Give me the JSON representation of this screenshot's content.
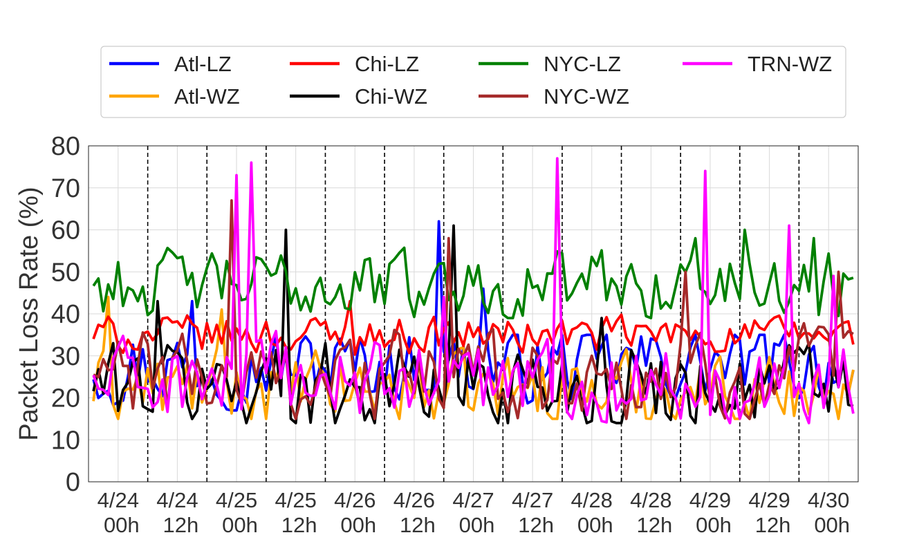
{
  "chart_data": {
    "type": "line",
    "title": "",
    "xlabel": "",
    "ylabel": "Packet Loss Rate (%)",
    "ylim": [
      0,
      80
    ],
    "yticks": [
      0,
      10,
      20,
      30,
      40,
      50,
      60,
      70,
      80
    ],
    "xlim": [
      "4/23 18h",
      "4/30 06h"
    ],
    "x_tick_labels": [
      {
        "at": "4/24 00h",
        "line1": "4/24",
        "line2": "00h"
      },
      {
        "at": "4/24 12h",
        "line1": "4/24",
        "line2": "12h"
      },
      {
        "at": "4/25 00h",
        "line1": "4/25",
        "line2": "00h"
      },
      {
        "at": "4/25 12h",
        "line1": "4/25",
        "line2": "12h"
      },
      {
        "at": "4/26 00h",
        "line1": "4/26",
        "line2": "00h"
      },
      {
        "at": "4/26 12h",
        "line1": "4/26",
        "line2": "12h"
      },
      {
        "at": "4/27 00h",
        "line1": "4/27",
        "line2": "00h"
      },
      {
        "at": "4/27 12h",
        "line1": "4/27",
        "line2": "12h"
      },
      {
        "at": "4/28 00h",
        "line1": "4/28",
        "line2": "00h"
      },
      {
        "at": "4/28 12h",
        "line1": "4/28",
        "line2": "12h"
      },
      {
        "at": "4/29 00h",
        "line1": "4/29",
        "line2": "00h"
      },
      {
        "at": "4/29 12h",
        "line1": "4/29",
        "line2": "12h"
      },
      {
        "at": "4/30 00h",
        "line1": "4/30",
        "line2": "00h"
      }
    ],
    "dashed_vlines": [
      "4/24 06h",
      "4/24 18h",
      "4/25 06h",
      "4/25 18h",
      "4/26 06h",
      "4/26 18h",
      "4/27 06h",
      "4/27 18h",
      "4/28 06h",
      "4/28 18h",
      "4/29 06h",
      "4/29 18h"
    ],
    "grid": true,
    "legend_position": "top, outside plot, 4 columns",
    "series": [
      {
        "name": "Atl-LZ",
        "color": "#0000ff",
        "base": 28,
        "amp": 5,
        "lo": 17,
        "hi": 35,
        "spikes": [
          [
            "4/24 15h",
            43
          ],
          [
            "4/26 17h",
            62
          ],
          [
            "4/27 02h",
            46
          ]
        ]
      },
      {
        "name": "Atl-WZ",
        "color": "#ffa500",
        "base": 22,
        "amp": 5,
        "lo": 15,
        "hi": 32,
        "spikes": [
          [
            "4/23 22h",
            44
          ],
          [
            "4/24 21h",
            41
          ]
        ]
      },
      {
        "name": "Chi-LZ",
        "color": "#ff0000",
        "base": 35,
        "amp": 2.5,
        "lo": 29,
        "hi": 40,
        "spikes": [
          [
            "4/25 23h",
            43
          ]
        ]
      },
      {
        "name": "Chi-WZ",
        "color": "#000000",
        "base": 23,
        "amp": 6,
        "lo": 14,
        "hi": 33,
        "spikes": [
          [
            "4/24 08h",
            43
          ],
          [
            "4/25 10h",
            60
          ],
          [
            "4/26 20h",
            61
          ],
          [
            "4/28 02h",
            39
          ]
        ]
      },
      {
        "name": "NYC-LZ",
        "color": "#008000",
        "base": 47,
        "amp": 4.5,
        "lo": 39,
        "hi": 60,
        "spikes": [
          [
            "4/28 21h",
            58
          ],
          [
            "4/29 07h",
            60
          ],
          [
            "4/29 21h",
            58
          ]
        ]
      },
      {
        "name": "NYC-WZ",
        "color": "#a52a2a",
        "base": 25,
        "amp": 6,
        "lo": 15,
        "hi": 46,
        "spikes": [
          [
            "4/24 23h",
            67
          ],
          [
            "4/26 19h",
            58
          ],
          [
            "4/28 19h",
            50
          ],
          [
            "4/30 02h",
            50
          ]
        ]
      },
      {
        "name": "TRN-WZ",
        "color": "#ff00ff",
        "base": 24,
        "amp": 5.5,
        "lo": 14,
        "hi": 38,
        "spikes": [
          [
            "4/25 00h",
            73
          ],
          [
            "4/25 03h",
            76
          ],
          [
            "4/26 18h",
            44
          ],
          [
            "4/27 17h",
            77
          ],
          [
            "4/28 23h",
            74
          ],
          [
            "4/29 16h",
            61
          ],
          [
            "4/30 01h",
            49
          ]
        ]
      }
    ]
  }
}
